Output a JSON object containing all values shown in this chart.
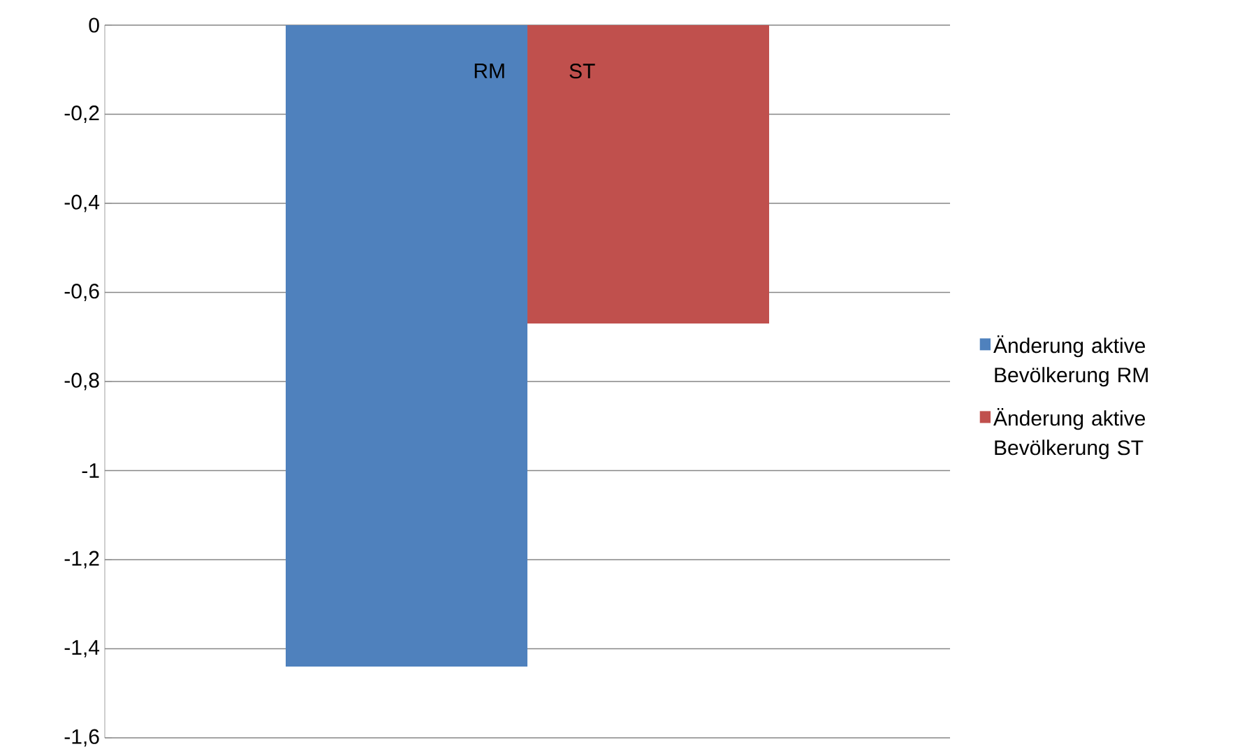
{
  "chart_data": {
    "type": "bar",
    "categories": [
      null
    ],
    "series": [
      {
        "name": "Änderung aktive Bevölkerung RM",
        "color": "#4f81bd",
        "values": [
          -1.44
        ]
      },
      {
        "name": "Änderung aktive Bevölkerung ST",
        "color": "#c0504d",
        "values": [
          -0.67
        ]
      }
    ],
    "ylim": [
      -1.6,
      0
    ],
    "yticks": [
      {
        "value": -1.6,
        "label": "-1,6"
      },
      {
        "value": -1.4,
        "label": "-1,4"
      },
      {
        "value": -1.2,
        "label": "-1,2"
      },
      {
        "value": -1,
        "label": "-1"
      },
      {
        "value": -0.8,
        "label": "-0,8"
      },
      {
        "value": -0.6,
        "label": "-0,6"
      },
      {
        "value": -0.4,
        "label": "-0,4"
      },
      {
        "value": -0.2,
        "label": "-0,2"
      },
      {
        "value": 0,
        "label": "0"
      }
    ],
    "grid": "y",
    "legend": "right",
    "tick_labels": "y",
    "annotations": [
      "RM",
      "ST"
    ]
  }
}
